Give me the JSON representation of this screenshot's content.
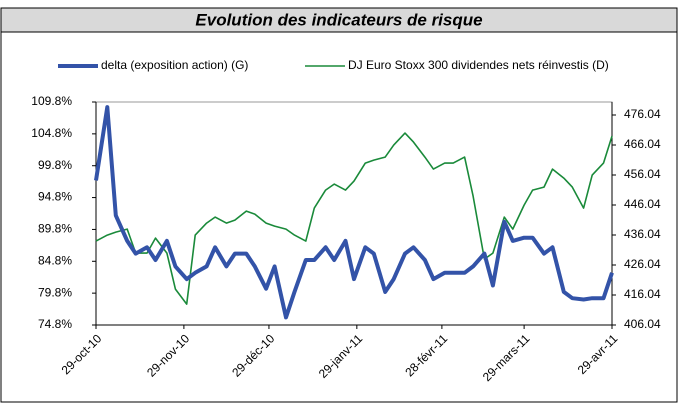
{
  "chart_data": {
    "type": "line",
    "title": "Evolution des indicateurs de risque",
    "x": [
      "2010-10-29",
      "2010-11-02",
      "2010-11-05",
      "2010-11-09",
      "2010-11-12",
      "2010-11-16",
      "2010-11-19",
      "2010-11-23",
      "2010-11-26",
      "2010-11-30",
      "2010-12-03",
      "2010-12-07",
      "2010-12-10",
      "2010-12-14",
      "2010-12-17",
      "2010-12-21",
      "2010-12-24",
      "2010-12-28",
      "2010-12-31",
      "2011-01-04",
      "2011-01-07",
      "2011-01-11",
      "2011-01-14",
      "2011-01-18",
      "2011-01-21",
      "2011-01-25",
      "2011-01-28",
      "2011-02-01",
      "2011-02-04",
      "2011-02-08",
      "2011-02-11",
      "2011-02-15",
      "2011-02-18",
      "2011-02-22",
      "2011-02-25",
      "2011-03-01",
      "2011-03-04",
      "2011-03-08",
      "2011-03-11",
      "2011-03-15",
      "2011-03-18",
      "2011-03-22",
      "2011-03-25",
      "2011-03-29",
      "2011-04-01",
      "2011-04-05",
      "2011-04-08",
      "2011-04-12",
      "2011-04-15",
      "2011-04-19",
      "2011-04-22",
      "2011-04-26",
      "2011-04-29"
    ],
    "xticks": [
      {
        "value": "2010-10-29",
        "label": "29-oct-10"
      },
      {
        "value": "2010-11-29",
        "label": "29-nov-10"
      },
      {
        "value": "2010-12-29",
        "label": "29-déc-10"
      },
      {
        "value": "2011-01-29",
        "label": "29-janv-11"
      },
      {
        "value": "2011-02-28",
        "label": "28-févr-11"
      },
      {
        "value": "2011-03-29",
        "label": "29-mars-11"
      },
      {
        "value": "2011-04-29",
        "label": "29-avr-11"
      }
    ],
    "series": [
      {
        "name": "delta (exposition action) (G)",
        "color": "#3353a8",
        "axis": "y",
        "values": [
          97.5,
          109,
          92,
          88,
          86,
          87,
          85,
          88,
          84,
          82,
          83,
          84,
          87,
          84,
          86,
          86,
          84,
          80.5,
          84,
          76,
          80,
          85,
          85,
          87,
          85,
          88,
          82,
          87,
          86,
          80,
          82,
          86,
          87,
          85,
          82,
          83,
          83,
          83,
          84,
          86,
          81,
          91,
          88,
          88.5,
          88.5,
          86,
          87,
          80,
          79,
          78.8,
          79,
          79,
          83
        ]
      },
      {
        "name": "DJ Euro Stoxx 300 dividendes nets réinvestis (D)",
        "color": "#1a8a3a",
        "axis": "y2",
        "values": [
          434,
          436,
          437,
          438,
          430,
          430,
          435,
          430,
          418,
          413,
          436,
          440,
          442,
          440,
          441,
          444,
          443,
          440,
          439,
          438,
          436,
          434,
          445,
          451,
          453,
          451,
          454,
          460,
          461,
          462,
          466,
          470,
          467,
          462,
          458,
          460,
          460,
          462,
          449,
          428,
          430,
          442,
          438,
          446,
          451,
          452,
          458,
          455,
          452,
          445,
          456,
          460,
          469
        ]
      }
    ],
    "ylim": [
      74.8,
      109.8
    ],
    "yticks": [
      {
        "value": 74.8,
        "label": "74.8%"
      },
      {
        "value": 79.8,
        "label": "79.8%"
      },
      {
        "value": 84.8,
        "label": "84.8%"
      },
      {
        "value": 89.8,
        "label": "89.8%"
      },
      {
        "value": 94.8,
        "label": "94.8%"
      },
      {
        "value": 99.8,
        "label": "99.8%"
      },
      {
        "value": 104.8,
        "label": "104.8%"
      },
      {
        "value": 109.8,
        "label": "109.8%"
      }
    ],
    "y2lim": [
      406.04,
      480.37
    ],
    "y2ticks": [
      406.04,
      416.04,
      426.04,
      436.04,
      446.04,
      456.04,
      466.04,
      476.04
    ],
    "grid": false
  }
}
